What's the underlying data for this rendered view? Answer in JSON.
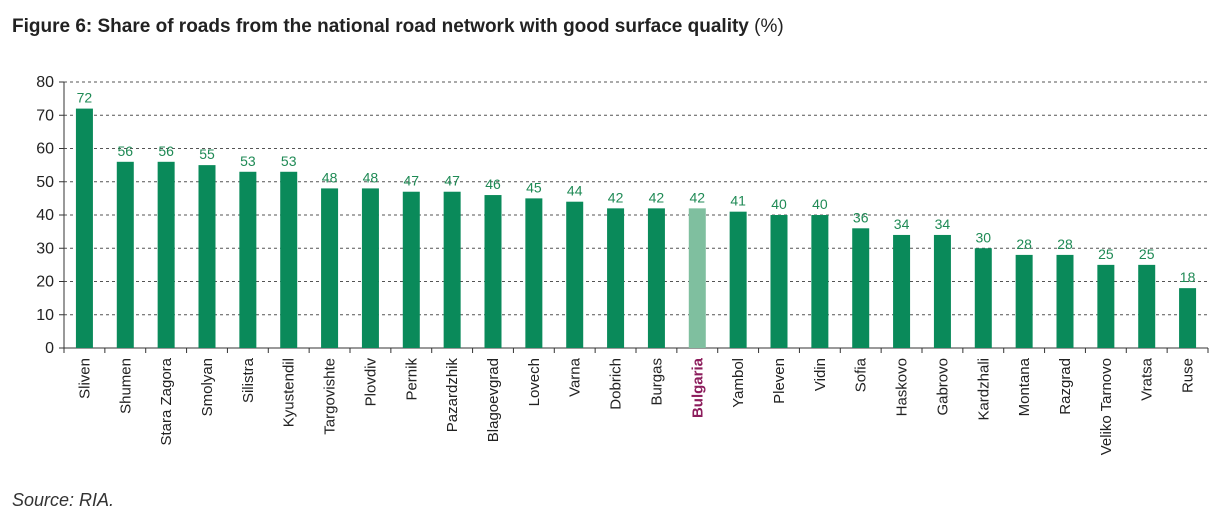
{
  "title_bold": "Figure 6: Share of roads from the national road network with good surface quality",
  "title_unit": "(%)",
  "source": "Source: RIA.",
  "colors": {
    "bar": "#0a8a5a",
    "highlight_bar": "#7fbf9f",
    "highlight_label": "#8c1d5c",
    "value_label": "#1f8a55"
  },
  "chart_data": {
    "type": "bar",
    "categories": [
      "Sliven",
      "Shumen",
      "Stara Zagora",
      "Smolyan",
      "Silistra",
      "Kyustendil",
      "Targovishte",
      "Plovdiv",
      "Pernik",
      "Pazardzhik",
      "Blagoevgrad",
      "Lovech",
      "Varna",
      "Dobrich",
      "Burgas",
      "Bulgaria",
      "Yambol",
      "Pleven",
      "Vidin",
      "Sofia",
      "Haskovo",
      "Gabrovo",
      "Kardzhali",
      "Montana",
      "Razgrad",
      "Veliko Tarnovo",
      "Vratsa",
      "Ruse"
    ],
    "values": [
      72,
      56,
      56,
      55,
      53,
      53,
      48,
      48,
      47,
      47,
      46,
      45,
      44,
      42,
      42,
      42,
      41,
      40,
      40,
      36,
      34,
      34,
      30,
      28,
      28,
      25,
      25,
      18
    ],
    "highlight": "Bulgaria",
    "ylim": [
      0,
      80
    ],
    "yticks": [
      0,
      10,
      20,
      30,
      40,
      50,
      60,
      70,
      80
    ],
    "grid": "dashed-horizontal",
    "xlabel": "",
    "ylabel": ""
  }
}
